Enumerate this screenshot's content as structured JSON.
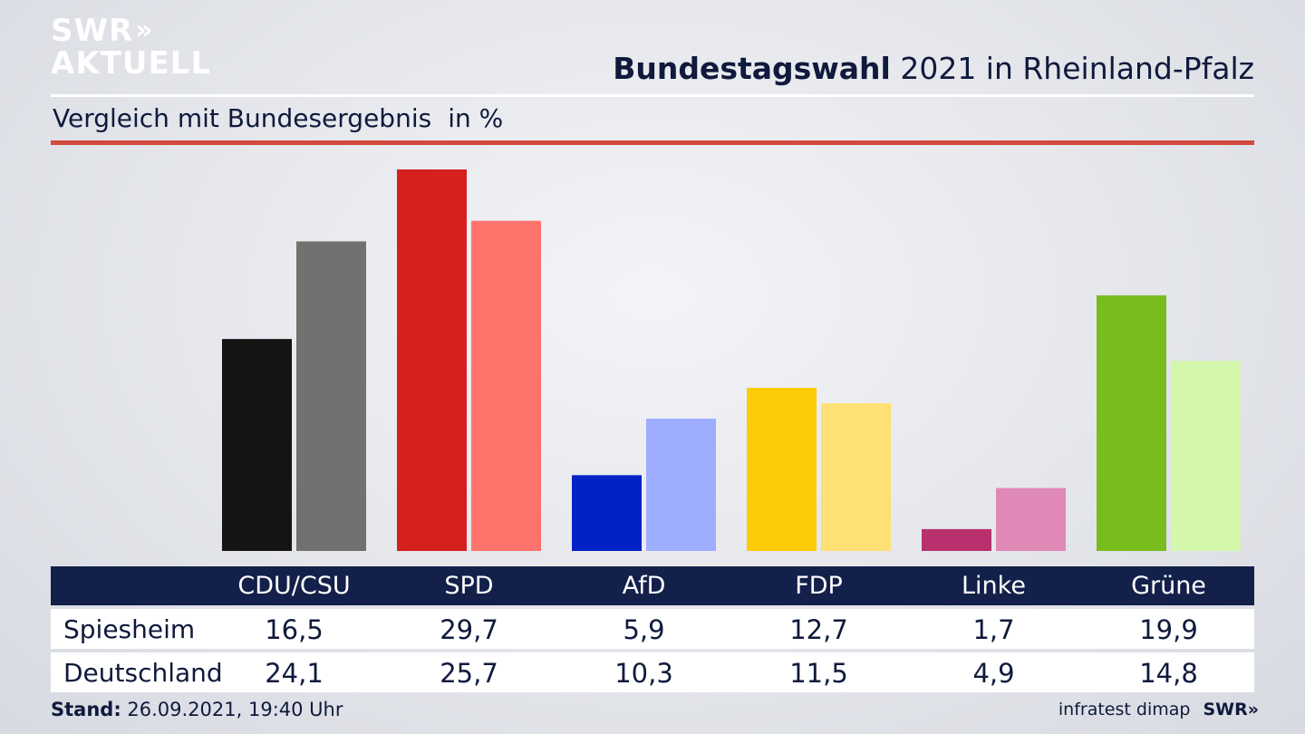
{
  "logo": {
    "line1": "SWR",
    "line2": "AKTUELL",
    "arrows": "»"
  },
  "header": {
    "title_bold": "Bundestagswahl",
    "title_rest": " 2021 in Rheinland-Pfalz",
    "subtitle": "Vergleich mit Bundesergebnis",
    "unit": "in %"
  },
  "colors": {
    "dark": [
      "#141414",
      "#d61f1f",
      "#0022c7",
      "#fecb08",
      "#b8306d",
      "#78bc1e"
    ],
    "light": [
      "#72716f",
      "#fe736c",
      "#9fadff",
      "#fee074",
      "#e088b6",
      "#d5f7ac"
    ],
    "accent_red": "#d4493d",
    "table_header": "#13204a"
  },
  "chart_data": {
    "type": "bar",
    "categories": [
      "CDU/CSU",
      "SPD",
      "AfD",
      "FDP",
      "Linke",
      "Grüne"
    ],
    "series": [
      {
        "name": "Spiesheim",
        "values": [
          16.5,
          29.7,
          5.9,
          12.7,
          1.7,
          19.9
        ]
      },
      {
        "name": "Deutschland",
        "values": [
          24.1,
          25.7,
          10.3,
          11.5,
          4.9,
          14.8
        ]
      }
    ],
    "ylim": [
      0,
      29.7
    ]
  },
  "table": {
    "rows": [
      {
        "label": "Spiesheim",
        "values": [
          "16,5",
          "29,7",
          "5,9",
          "12,7",
          "1,7",
          "19,9"
        ]
      },
      {
        "label": "Deutschland",
        "values": [
          "24,1",
          "25,7",
          "10,3",
          "11,5",
          "4,9",
          "14,8"
        ]
      }
    ]
  },
  "footer": {
    "stand_label": "Stand:",
    "stand_value": " 26.09.2021, 19:40 Uhr",
    "source": "infratest dimap",
    "brand": "SWR",
    "brand_arrows": "»"
  }
}
